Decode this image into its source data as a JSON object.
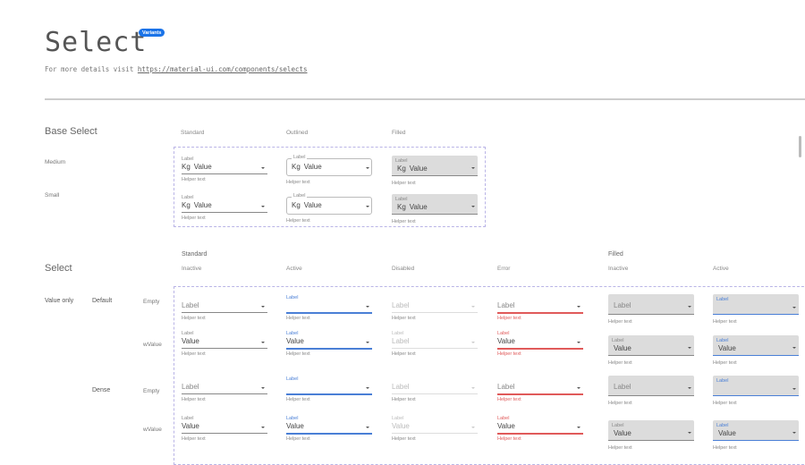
{
  "header": {
    "title": "Select",
    "badge": "Variants",
    "subtitle_prefix": "For more details visit",
    "link": "https://material-ui.com/components/selects"
  },
  "colors": {
    "accent": "#4a7fd6",
    "error": "#e05a5a",
    "filled_bg": "#dcdcdc",
    "badge": "#1a73e8"
  },
  "base_select": {
    "title": "Base Select",
    "columns": [
      "Standard",
      "Outlined",
      "Filled"
    ],
    "rows": [
      {
        "name": "Medium",
        "fields": [
          {
            "variant": "standard",
            "state": "inactive",
            "label": "Label",
            "prefix": "Kg",
            "value": "Value",
            "helper": "Helper text"
          },
          {
            "variant": "outlined",
            "state": "inactive",
            "label": "Label",
            "prefix": "Kg",
            "value": "Value",
            "helper": "Helper text"
          },
          {
            "variant": "filled",
            "state": "inactive",
            "label": "Label",
            "prefix": "Kg",
            "value": "Value",
            "helper": "Helper text"
          }
        ]
      },
      {
        "name": "Small",
        "fields": [
          {
            "variant": "standard",
            "state": "inactive",
            "label": "Label",
            "prefix": "Kg",
            "value": "Value",
            "helper": "Helper text"
          },
          {
            "variant": "outlined",
            "state": "inactive",
            "label": "Label",
            "prefix": "Kg",
            "value": "Value",
            "helper": "Helper text"
          },
          {
            "variant": "filled",
            "state": "inactive",
            "label": "Label",
            "prefix": "Kg",
            "value": "Value",
            "helper": "Helper text"
          }
        ]
      }
    ]
  },
  "select": {
    "title": "Select",
    "group_headers": {
      "standard": "Standard",
      "filled": "Filled"
    },
    "columns": [
      "Inactive",
      "Active",
      "Disabled",
      "Error",
      "Inactive",
      "Active"
    ],
    "type": "Value only",
    "sizes": [
      {
        "name": "Default",
        "rows": [
          {
            "name": "Empty",
            "fields": [
              {
                "variant": "standard",
                "state": "inactive",
                "label": "Label",
                "value": "",
                "helper": "Helper text"
              },
              {
                "variant": "standard",
                "state": "active",
                "label": "Label",
                "value": "",
                "helper": "Helper text"
              },
              {
                "variant": "standard",
                "state": "disabled",
                "label": "Label",
                "value": "",
                "helper": "Helper text"
              },
              {
                "variant": "standard",
                "state": "error",
                "label": "Label",
                "value": "",
                "helper": "Helper text"
              },
              {
                "variant": "filled",
                "state": "inactive",
                "label": "Label",
                "value": "",
                "helper": "Helper text"
              },
              {
                "variant": "filled",
                "state": "active",
                "label": "Label",
                "value": "",
                "helper": "Helper text"
              }
            ]
          },
          {
            "name": "wValue",
            "fields": [
              {
                "variant": "standard",
                "state": "inactive",
                "label": "Label",
                "value": "Value",
                "helper": "Helper text"
              },
              {
                "variant": "standard",
                "state": "active",
                "label": "Label",
                "value": "Value",
                "helper": "Helper text"
              },
              {
                "variant": "standard",
                "state": "disabled",
                "label": "Label",
                "value": "Label",
                "helper": "Helper text"
              },
              {
                "variant": "standard",
                "state": "error",
                "label": "Label",
                "value": "Value",
                "helper": "Helper text"
              },
              {
                "variant": "filled",
                "state": "inactive",
                "label": "Label",
                "value": "Value",
                "helper": "Helper text"
              },
              {
                "variant": "filled",
                "state": "active",
                "label": "Label",
                "value": "Value",
                "helper": "Helper text"
              }
            ]
          }
        ]
      },
      {
        "name": "Dense",
        "rows": [
          {
            "name": "Empty",
            "fields": [
              {
                "variant": "standard",
                "state": "inactive",
                "label": "Label",
                "value": "",
                "helper": "Helper text"
              },
              {
                "variant": "standard",
                "state": "active",
                "label": "Label",
                "value": "",
                "helper": "Helper text"
              },
              {
                "variant": "standard",
                "state": "disabled",
                "label": "Label",
                "value": "",
                "helper": "Helper text"
              },
              {
                "variant": "standard",
                "state": "error",
                "label": "Label",
                "value": "",
                "helper": "Helper text"
              },
              {
                "variant": "filled",
                "state": "inactive",
                "label": "Label",
                "value": "",
                "helper": "Helper text"
              },
              {
                "variant": "filled",
                "state": "active",
                "label": "Label",
                "value": "",
                "helper": "Helper text"
              }
            ]
          },
          {
            "name": "wValue",
            "fields": [
              {
                "variant": "standard",
                "state": "inactive",
                "label": "Label",
                "value": "Value",
                "helper": "Helper text"
              },
              {
                "variant": "standard",
                "state": "active",
                "label": "Label",
                "value": "Value",
                "helper": "Helper text"
              },
              {
                "variant": "standard",
                "state": "disabled",
                "label": "Label",
                "value": "Value",
                "helper": "Helper text"
              },
              {
                "variant": "standard",
                "state": "error",
                "label": "Label",
                "value": "Value",
                "helper": "Helper text"
              },
              {
                "variant": "filled",
                "state": "inactive",
                "label": "Label",
                "value": "Value",
                "helper": "Helper text"
              },
              {
                "variant": "filled",
                "state": "active",
                "label": "Label",
                "value": "Value",
                "helper": "Helper text"
              }
            ]
          }
        ]
      }
    ]
  }
}
